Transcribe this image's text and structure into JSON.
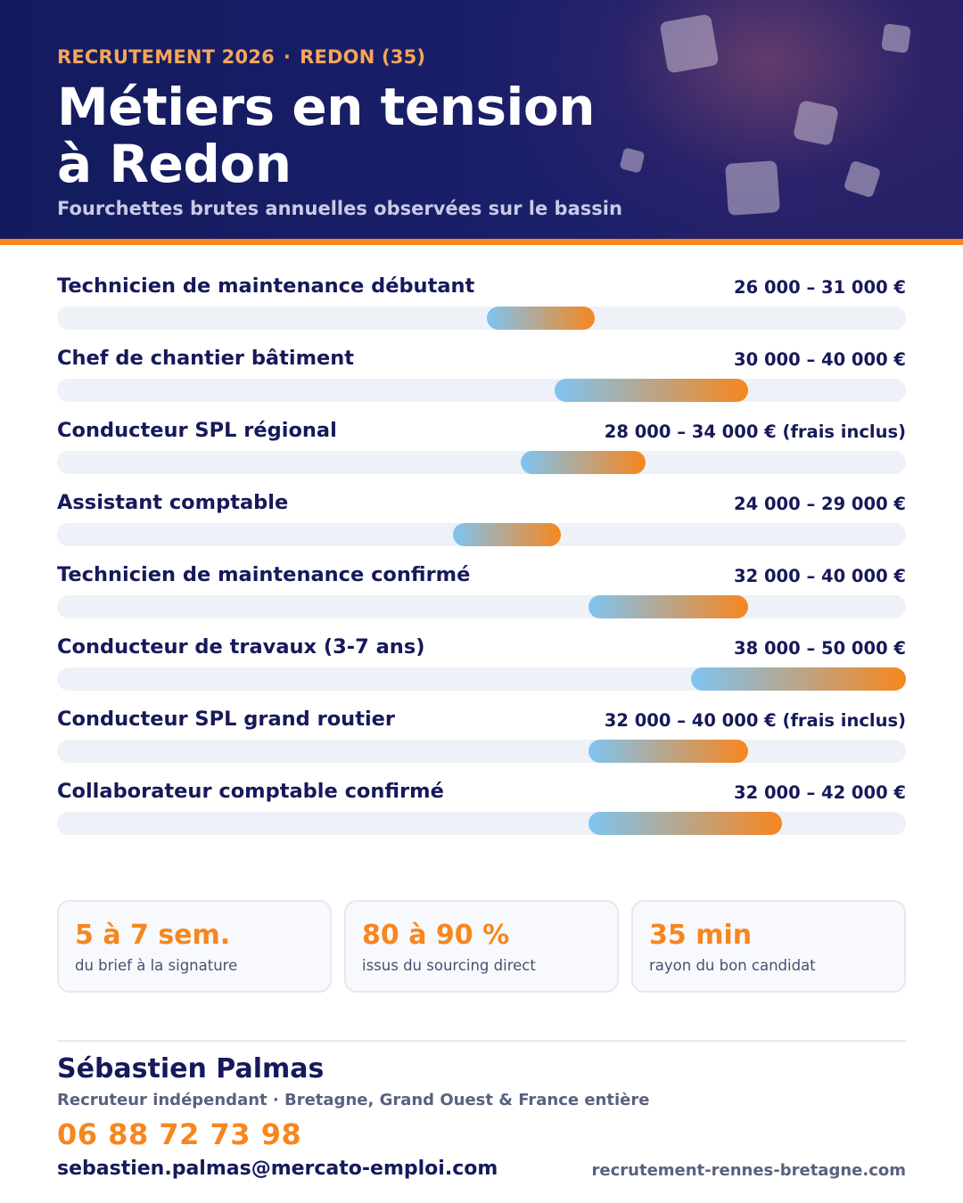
{
  "header": {
    "kicker_left": "RECRUTEMENT 2026",
    "kicker_separator": "·",
    "kicker_right": "REDON (35)",
    "title_line1": "Métiers en tension",
    "title_line2": "à Redon",
    "subtitle": "Fourchettes brutes annuelles observées sur le bassin"
  },
  "jobs": [
    {
      "title": "Technicien de maintenance débutant",
      "range": "26 000 – 31 000 €",
      "min": 26000,
      "max": 31000
    },
    {
      "title": "Chef de chantier bâtiment",
      "range": "30 000 – 40 000 €",
      "min": 30000,
      "max": 40000
    },
    {
      "title": "Conducteur SPL régional",
      "range": "28 000 – 34 000 € (frais inclus)",
      "min": 28000,
      "max": 34000
    },
    {
      "title": "Assistant comptable",
      "range": "24 000 – 29 000 €",
      "min": 24000,
      "max": 29000
    },
    {
      "title": "Technicien de maintenance confirmé",
      "range": "32 000 – 40 000 €",
      "min": 32000,
      "max": 40000
    },
    {
      "title": "Conducteur de travaux (3-7 ans)",
      "range": "38 000 – 50 000 €",
      "min": 38000,
      "max": 50000
    },
    {
      "title": "Conducteur SPL grand routier",
      "range": "32 000 – 40 000 € (frais inclus)",
      "min": 32000,
      "max": 40000
    },
    {
      "title": "Collaborateur comptable confirmé",
      "range": "32 000 – 42 000 €",
      "min": 32000,
      "max": 42000
    }
  ],
  "scale": {
    "min": 0,
    "max": 50000
  },
  "stats": [
    {
      "value": "5 à 7 sem.",
      "label": "du brief à la signature"
    },
    {
      "value": "80 à 90 %",
      "label": "issus du sourcing direct"
    },
    {
      "value": "35 min",
      "label": "rayon du bon candidat"
    }
  ],
  "contact": {
    "name": "Sébastien Palmas",
    "role": "Recruteur indépendant · Bretagne, Grand Ouest & France entière",
    "phone": "06 88 72 73 98",
    "email": "sebastien.palmas@mercato-emploi.com",
    "website": "recrutement-rennes-bretagne.com"
  },
  "colors": {
    "navy": "#16195a",
    "accent": "#f7861e",
    "bar_start": "#7ec4f2",
    "bar_end": "#f7861e",
    "track": "#eef1f7"
  }
}
